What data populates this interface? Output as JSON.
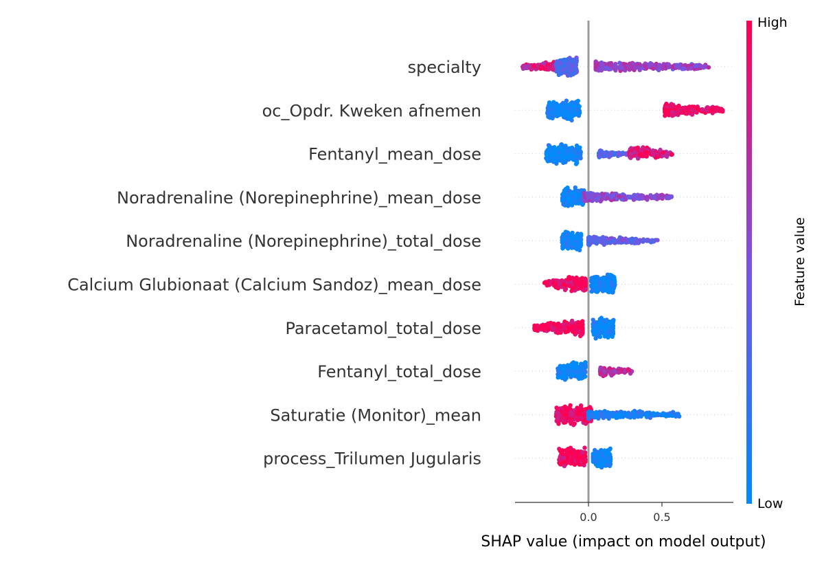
{
  "chart_data": {
    "type": "scatter",
    "subtype": "shap-beeswarm",
    "xlabel": "SHAP value (impact on model output)",
    "x_ticks": [
      0.0,
      0.5
    ],
    "x_tick_labels": [
      "0.0",
      "0.5"
    ],
    "xlim": [
      -0.5,
      0.98
    ],
    "colorbar": {
      "label": "Feature value",
      "high_label": "High",
      "low_label": "Low",
      "low_color": "#008bfb",
      "mid_color": "#7c52e0",
      "high_color": "#ff0052"
    },
    "grid": false,
    "features": [
      {
        "name": "specialty",
        "clusters": [
          {
            "x0": -0.45,
            "x1": -0.22,
            "c": 0.8,
            "n": 180,
            "spread": 0.45
          },
          {
            "x0": -0.22,
            "x1": -0.08,
            "c": 0.3,
            "n": 260,
            "spread": 1.0
          },
          {
            "x0": 0.05,
            "x1": 0.82,
            "c": 0.6,
            "n": 360,
            "spread": 0.4
          }
        ]
      },
      {
        "name": "oc_Opdr. Kweken afnemen",
        "clusters": [
          {
            "x0": -0.28,
            "x1": -0.06,
            "c": 0.02,
            "n": 260,
            "spread": 1.0
          },
          {
            "x0": 0.52,
            "x1": 0.92,
            "c": 0.97,
            "n": 280,
            "spread": 0.5
          }
        ]
      },
      {
        "name": "Fentanyl_mean_dose",
        "clusters": [
          {
            "x0": -0.29,
            "x1": -0.05,
            "c": 0.02,
            "n": 240,
            "spread": 1.0
          },
          {
            "x0": 0.07,
            "x1": 0.28,
            "c": 0.35,
            "n": 80,
            "spread": 0.3
          },
          {
            "x0": 0.28,
            "x1": 0.57,
            "c": 0.85,
            "n": 170,
            "spread": 0.6
          }
        ]
      },
      {
        "name": "Noradrenaline (Norepinephrine)_mean_dose",
        "clusters": [
          {
            "x0": -0.18,
            "x1": -0.03,
            "c": 0.02,
            "n": 260,
            "spread": 1.0
          },
          {
            "x0": -0.03,
            "x1": 0.58,
            "c": 0.55,
            "n": 240,
            "spread": 0.35
          }
        ]
      },
      {
        "name": "Noradrenaline (Norepinephrine)_total_dose",
        "clusters": [
          {
            "x0": -0.18,
            "x1": -0.05,
            "c": 0.02,
            "n": 200,
            "spread": 1.0
          },
          {
            "x0": 0.0,
            "x1": 0.47,
            "c": 0.4,
            "n": 220,
            "spread": 0.35
          }
        ]
      },
      {
        "name": "Calcium Glubionaat (Calcium Sandoz)_mean_dose",
        "clusters": [
          {
            "x0": -0.3,
            "x1": -0.02,
            "c": 0.97,
            "n": 240,
            "spread": 0.75
          },
          {
            "x0": 0.02,
            "x1": 0.18,
            "c": 0.02,
            "n": 280,
            "spread": 1.0
          }
        ]
      },
      {
        "name": "Paracetamol_total_dose",
        "clusters": [
          {
            "x0": -0.37,
            "x1": -0.04,
            "c": 0.97,
            "n": 260,
            "spread": 0.7
          },
          {
            "x0": 0.03,
            "x1": 0.17,
            "c": 0.02,
            "n": 260,
            "spread": 1.0
          }
        ]
      },
      {
        "name": "Fentanyl_total_dose",
        "clusters": [
          {
            "x0": -0.21,
            "x1": -0.02,
            "c": 0.02,
            "n": 200,
            "spread": 1.0
          },
          {
            "x0": 0.08,
            "x1": 0.3,
            "c": 0.75,
            "n": 110,
            "spread": 0.35
          }
        ]
      },
      {
        "name": "Saturatie (Monitor)_mean",
        "clusters": [
          {
            "x0": -0.22,
            "x1": 0.02,
            "c": 0.95,
            "n": 300,
            "spread": 1.0
          },
          {
            "x0": 0.0,
            "x1": 0.62,
            "c": 0.1,
            "n": 300,
            "spread": 0.35
          }
        ]
      },
      {
        "name": "process_Trilumen Jugularis",
        "clusters": [
          {
            "x0": -0.2,
            "x1": -0.02,
            "c": 0.97,
            "n": 260,
            "spread": 1.0
          },
          {
            "x0": 0.03,
            "x1": 0.15,
            "c": 0.02,
            "n": 240,
            "spread": 1.0
          }
        ]
      }
    ]
  }
}
